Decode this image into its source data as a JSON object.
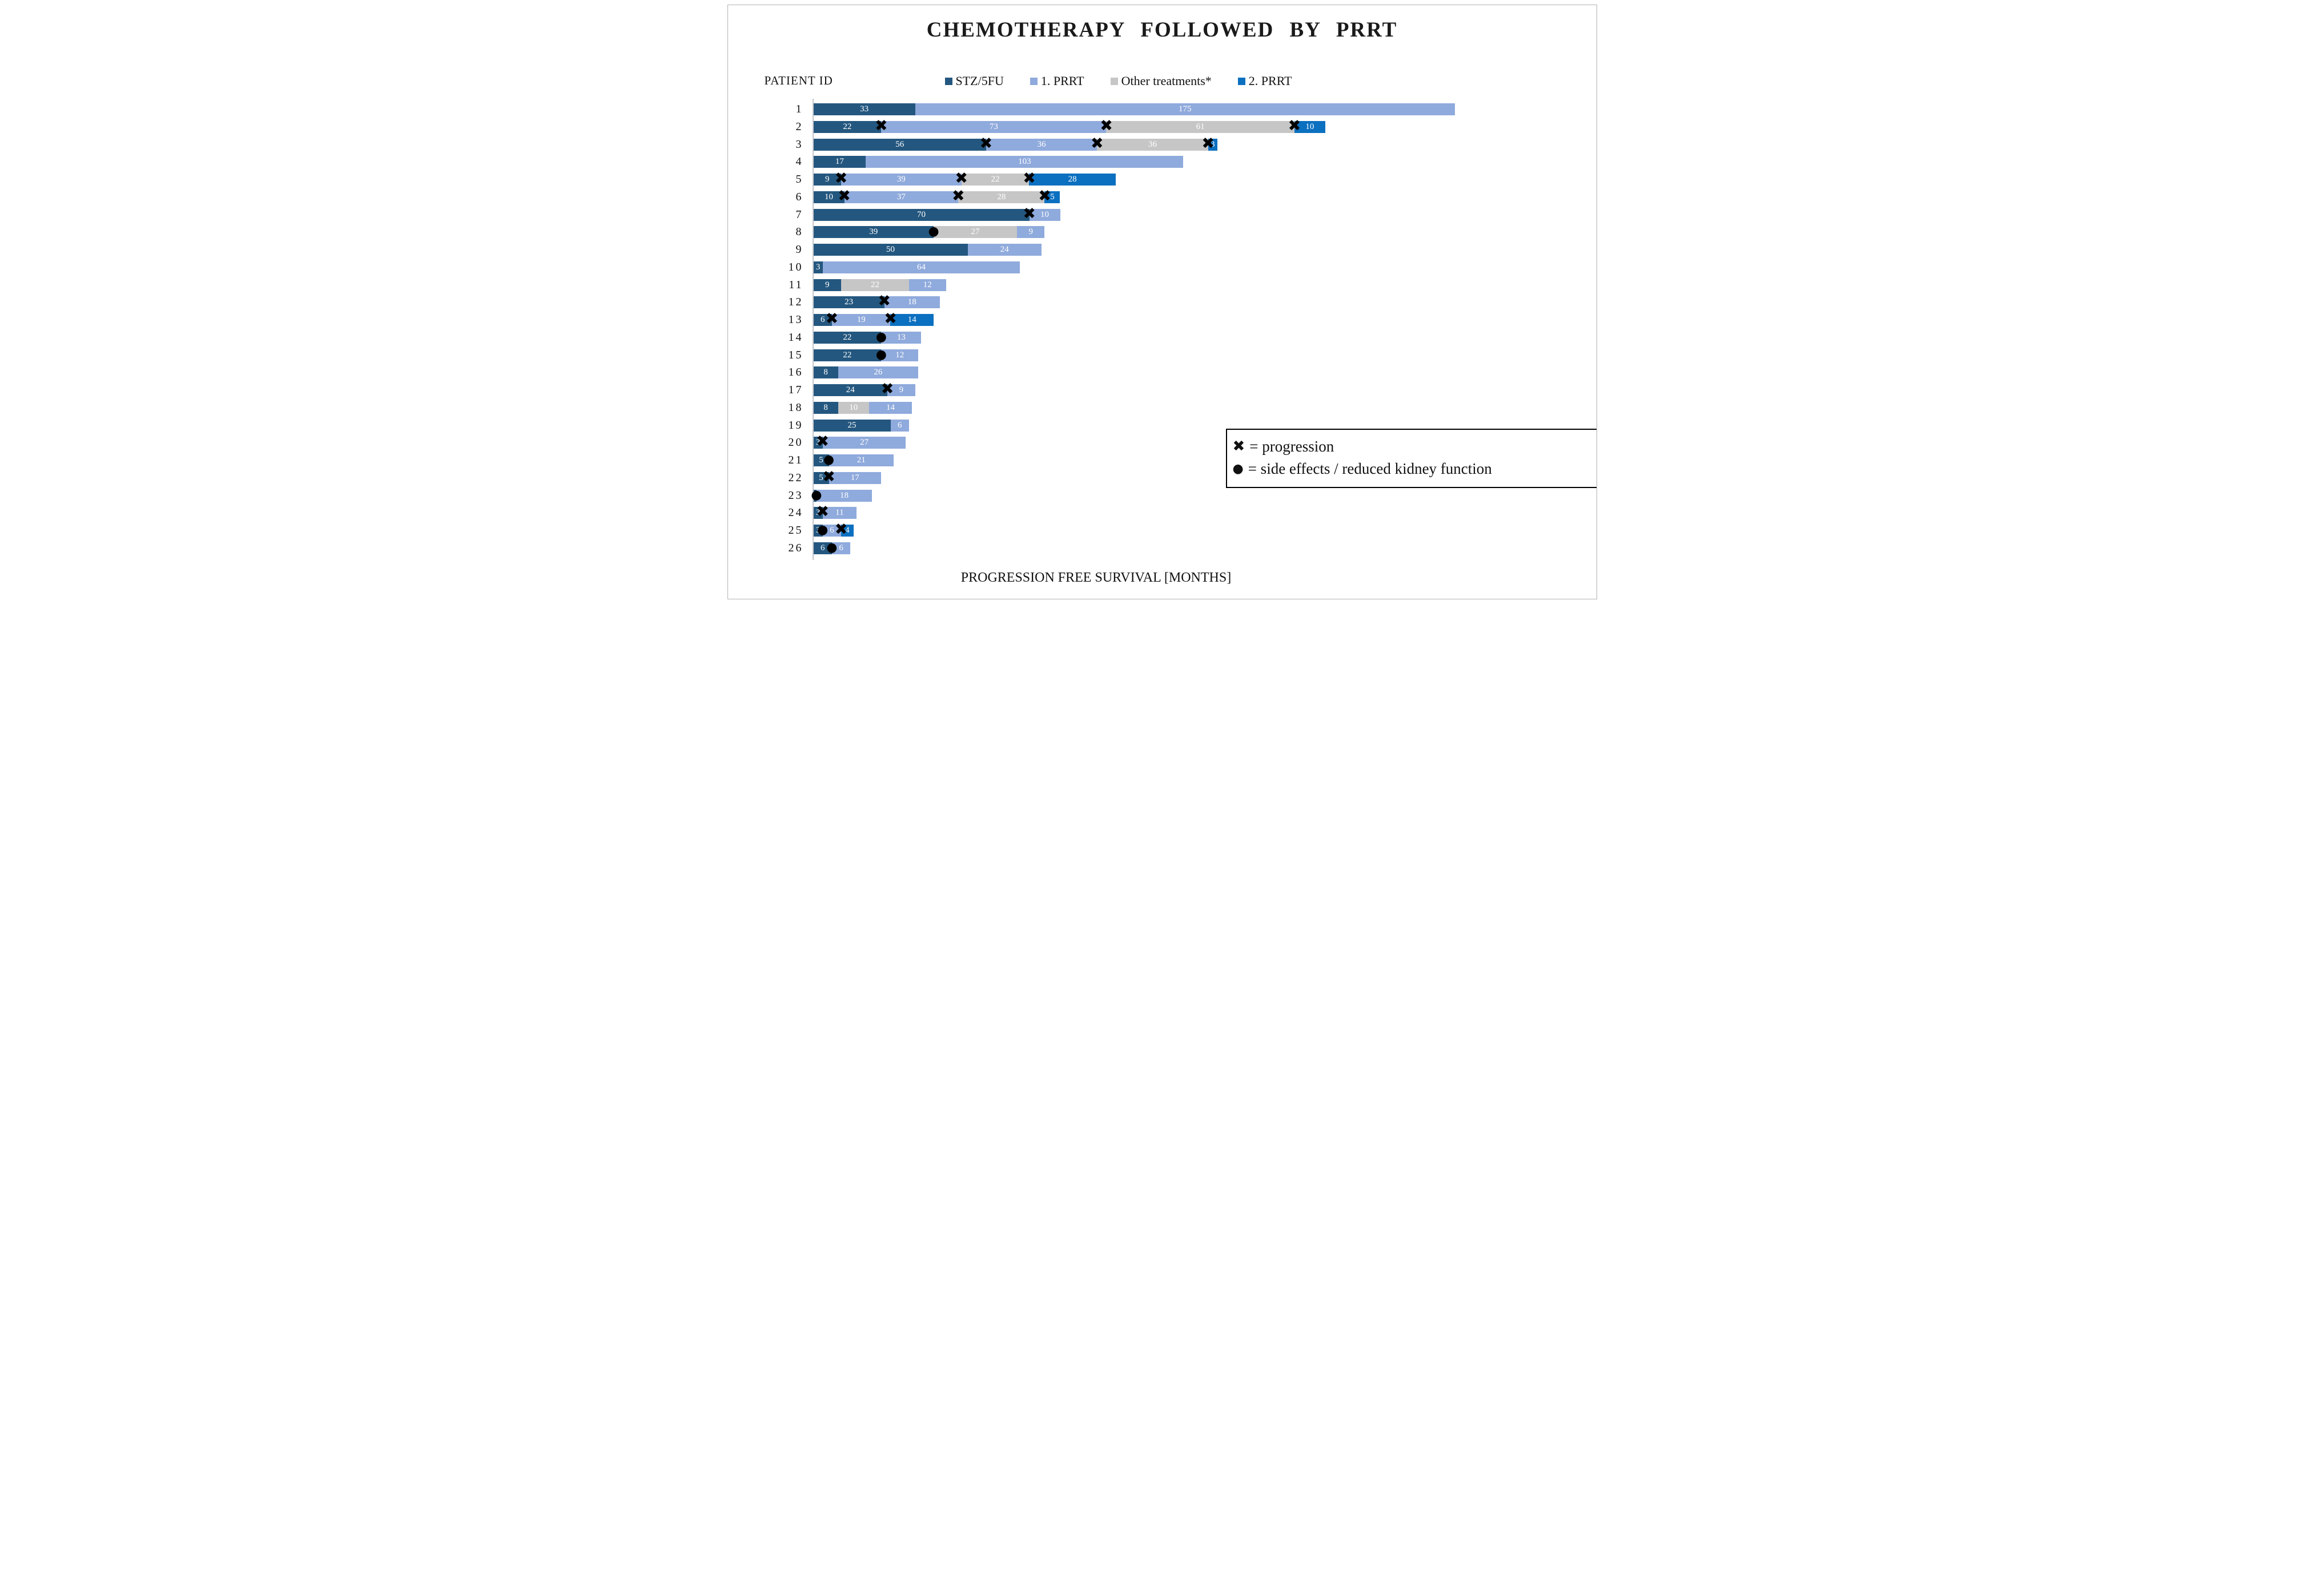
{
  "title": "CHEMOTHERAPY FOLLOWED BY PRRT",
  "y_axis_label": "PATIENT ID",
  "x_axis_label": "PROGRESSION FREE SURVIVAL [MONTHS]",
  "legend": [
    {
      "label": "STZ/5FU",
      "color": "#24577F"
    },
    {
      "label": "1. PRRT",
      "color": "#8FAADC"
    },
    {
      "label": "Other treatments*",
      "color": "#C6C6C6"
    },
    {
      "label": "2. PRRT",
      "color": "#0C70C0"
    }
  ],
  "annotation": {
    "progression_glyph": "✖",
    "progression_text": "= progression",
    "side_effect_glyph": "●",
    "side_effect_text": "= side effects / reduced kidney function"
  },
  "marker_glyphs": {
    "progression": "✖",
    "side-effect": "●"
  },
  "chart_data": {
    "type": "bar",
    "orientation": "horizontal",
    "stacked": true,
    "x_unit": "months",
    "x_range": [
      0,
      208
    ],
    "grid": false,
    "series_names": [
      "STZ/5FU",
      "1. PRRT",
      "Other treatments*",
      "2. PRRT"
    ],
    "marker_legend": {
      "progression": "progression",
      "side-effect": "side effects / reduced kidney function"
    },
    "patients": [
      {
        "id": "1",
        "segments": [
          {
            "series": "STZ/5FU",
            "value": 33,
            "label": "33"
          },
          {
            "series": "1. PRRT",
            "value": 175,
            "label": "175"
          }
        ],
        "markers": []
      },
      {
        "id": "2",
        "segments": [
          {
            "series": "STZ/5FU",
            "value": 22,
            "label": "22"
          },
          {
            "series": "1. PRRT",
            "value": 73,
            "label": "73"
          },
          {
            "series": "Other treatments*",
            "value": 61,
            "label": "61"
          },
          {
            "series": "2. PRRT",
            "value": 10,
            "label": "10"
          }
        ],
        "markers": [
          {
            "type": "progression",
            "at": 22
          },
          {
            "type": "progression",
            "at": 95
          },
          {
            "type": "progression",
            "at": 156
          }
        ]
      },
      {
        "id": "3",
        "segments": [
          {
            "series": "STZ/5FU",
            "value": 56,
            "label": "56"
          },
          {
            "series": "1. PRRT",
            "value": 36,
            "label": "36"
          },
          {
            "series": "Other treatments*",
            "value": 36,
            "label": "36"
          },
          {
            "series": "2. PRRT",
            "value": 3,
            "label": "3"
          }
        ],
        "markers": [
          {
            "type": "progression",
            "at": 56
          },
          {
            "type": "progression",
            "at": 92
          },
          {
            "type": "progression",
            "at": 128
          }
        ]
      },
      {
        "id": "4",
        "segments": [
          {
            "series": "STZ/5FU",
            "value": 17,
            "label": "17"
          },
          {
            "series": "1. PRRT",
            "value": 103,
            "label": "103"
          }
        ],
        "markers": []
      },
      {
        "id": "5",
        "segments": [
          {
            "series": "STZ/5FU",
            "value": 9,
            "label": "9"
          },
          {
            "series": "1. PRRT",
            "value": 39,
            "label": "39"
          },
          {
            "series": "Other treatments*",
            "value": 22,
            "label": "22"
          },
          {
            "series": "2. PRRT",
            "value": 28,
            "label": "28"
          }
        ],
        "markers": [
          {
            "type": "progression",
            "at": 9
          },
          {
            "type": "progression",
            "at": 48
          },
          {
            "type": "progression",
            "at": 70
          }
        ]
      },
      {
        "id": "6",
        "segments": [
          {
            "series": "STZ/5FU",
            "value": 10,
            "label": "10"
          },
          {
            "series": "1. PRRT",
            "value": 37,
            "label": "37"
          },
          {
            "series": "Other treatments*",
            "value": 28,
            "label": "28"
          },
          {
            "series": "2. PRRT",
            "value": 5,
            "label": "5"
          }
        ],
        "markers": [
          {
            "type": "progression",
            "at": 10
          },
          {
            "type": "progression",
            "at": 47
          },
          {
            "type": "progression",
            "at": 75
          }
        ]
      },
      {
        "id": "7",
        "segments": [
          {
            "series": "STZ/5FU",
            "value": 70,
            "label": "70"
          },
          {
            "series": "1. PRRT",
            "value": 10,
            "label": "10"
          }
        ],
        "markers": [
          {
            "type": "progression",
            "at": 70
          }
        ]
      },
      {
        "id": "8",
        "segments": [
          {
            "series": "STZ/5FU",
            "value": 39,
            "label": "39"
          },
          {
            "series": "Other treatments*",
            "value": 27,
            "label": "27"
          },
          {
            "series": "1. PRRT",
            "value": 9,
            "label": "9"
          }
        ],
        "markers": [
          {
            "type": "side-effect",
            "at": 39
          }
        ]
      },
      {
        "id": "9",
        "segments": [
          {
            "series": "STZ/5FU",
            "value": 50,
            "label": "50"
          },
          {
            "series": "1. PRRT",
            "value": 24,
            "label": "24"
          }
        ],
        "markers": []
      },
      {
        "id": "10",
        "segments": [
          {
            "series": "STZ/5FU",
            "value": 3,
            "label": "3"
          },
          {
            "series": "1. PRRT",
            "value": 64,
            "label": "64"
          }
        ],
        "markers": []
      },
      {
        "id": "11",
        "segments": [
          {
            "series": "STZ/5FU",
            "value": 9,
            "label": "9"
          },
          {
            "series": "Other treatments*",
            "value": 22,
            "label": "22"
          },
          {
            "series": "1. PRRT",
            "value": 12,
            "label": "12"
          }
        ],
        "markers": []
      },
      {
        "id": "12",
        "segments": [
          {
            "series": "STZ/5FU",
            "value": 23,
            "label": "23"
          },
          {
            "series": "1. PRRT",
            "value": 18,
            "label": "18"
          }
        ],
        "markers": [
          {
            "type": "progression",
            "at": 23
          }
        ]
      },
      {
        "id": "13",
        "segments": [
          {
            "series": "STZ/5FU",
            "value": 6,
            "label": "6"
          },
          {
            "series": "1. PRRT",
            "value": 19,
            "label": "19"
          },
          {
            "series": "2. PRRT",
            "value": 14,
            "label": "14"
          }
        ],
        "markers": [
          {
            "type": "progression",
            "at": 6
          },
          {
            "type": "progression",
            "at": 25
          }
        ]
      },
      {
        "id": "14",
        "segments": [
          {
            "series": "STZ/5FU",
            "value": 22,
            "label": "22"
          },
          {
            "series": "1. PRRT",
            "value": 13,
            "label": "13"
          }
        ],
        "markers": [
          {
            "type": "side-effect",
            "at": 22
          }
        ]
      },
      {
        "id": "15",
        "segments": [
          {
            "series": "STZ/5FU",
            "value": 22,
            "label": "22"
          },
          {
            "series": "1. PRRT",
            "value": 12,
            "label": "12"
          }
        ],
        "markers": [
          {
            "type": "side-effect",
            "at": 22
          }
        ]
      },
      {
        "id": "16",
        "segments": [
          {
            "series": "STZ/5FU",
            "value": 8,
            "label": "8"
          },
          {
            "series": "1. PRRT",
            "value": 26,
            "label": "26"
          }
        ],
        "markers": []
      },
      {
        "id": "17",
        "segments": [
          {
            "series": "STZ/5FU",
            "value": 24,
            "label": "24"
          },
          {
            "series": "1. PRRT",
            "value": 9,
            "label": "9"
          }
        ],
        "markers": [
          {
            "type": "progression",
            "at": 24
          }
        ]
      },
      {
        "id": "18",
        "segments": [
          {
            "series": "STZ/5FU",
            "value": 8,
            "label": "8"
          },
          {
            "series": "Other treatments*",
            "value": 10,
            "label": "10"
          },
          {
            "series": "1. PRRT",
            "value": 14,
            "label": "14"
          }
        ],
        "markers": []
      },
      {
        "id": "19",
        "segments": [
          {
            "series": "STZ/5FU",
            "value": 25,
            "label": "25"
          },
          {
            "series": "1. PRRT",
            "value": 6,
            "label": "6"
          }
        ],
        "markers": []
      },
      {
        "id": "20",
        "segments": [
          {
            "series": "STZ/5FU",
            "value": 3,
            "label": "3"
          },
          {
            "series": "1. PRRT",
            "value": 27,
            "label": "27"
          }
        ],
        "markers": [
          {
            "type": "progression",
            "at": 3
          }
        ]
      },
      {
        "id": "21",
        "segments": [
          {
            "series": "STZ/5FU",
            "value": 5,
            "label": "5"
          },
          {
            "series": "1. PRRT",
            "value": 21,
            "label": "21"
          }
        ],
        "markers": [
          {
            "type": "side-effect",
            "at": 5
          }
        ]
      },
      {
        "id": "22",
        "segments": [
          {
            "series": "STZ/5FU",
            "value": 5,
            "label": "5"
          },
          {
            "series": "1. PRRT",
            "value": 17,
            "label": "17"
          }
        ],
        "markers": [
          {
            "type": "progression",
            "at": 5
          }
        ]
      },
      {
        "id": "23",
        "segments": [
          {
            "series": "STZ/5FU",
            "value": 1,
            "label": ""
          },
          {
            "series": "1. PRRT",
            "value": 18,
            "label": "18"
          }
        ],
        "markers": [
          {
            "type": "side-effect",
            "at": 1
          }
        ]
      },
      {
        "id": "24",
        "segments": [
          {
            "series": "STZ/5FU",
            "value": 3,
            "label": "3"
          },
          {
            "series": "1. PRRT",
            "value": 11,
            "label": "11"
          }
        ],
        "markers": [
          {
            "type": "progression",
            "at": 3
          }
        ]
      },
      {
        "id": "25",
        "segments": [
          {
            "series": "STZ/5FU",
            "value": 3,
            "label": "3"
          },
          {
            "series": "1. PRRT",
            "value": 6,
            "label": "6"
          },
          {
            "series": "2. PRRT",
            "value": 4,
            "label": "4"
          }
        ],
        "markers": [
          {
            "type": "side-effect",
            "at": 3
          },
          {
            "type": "progression",
            "at": 9
          }
        ]
      },
      {
        "id": "26",
        "segments": [
          {
            "series": "STZ/5FU",
            "value": 6,
            "label": "6"
          },
          {
            "series": "1. PRRT",
            "value": 6,
            "label": "6"
          }
        ],
        "markers": [
          {
            "type": "side-effect",
            "at": 6
          }
        ]
      }
    ]
  }
}
